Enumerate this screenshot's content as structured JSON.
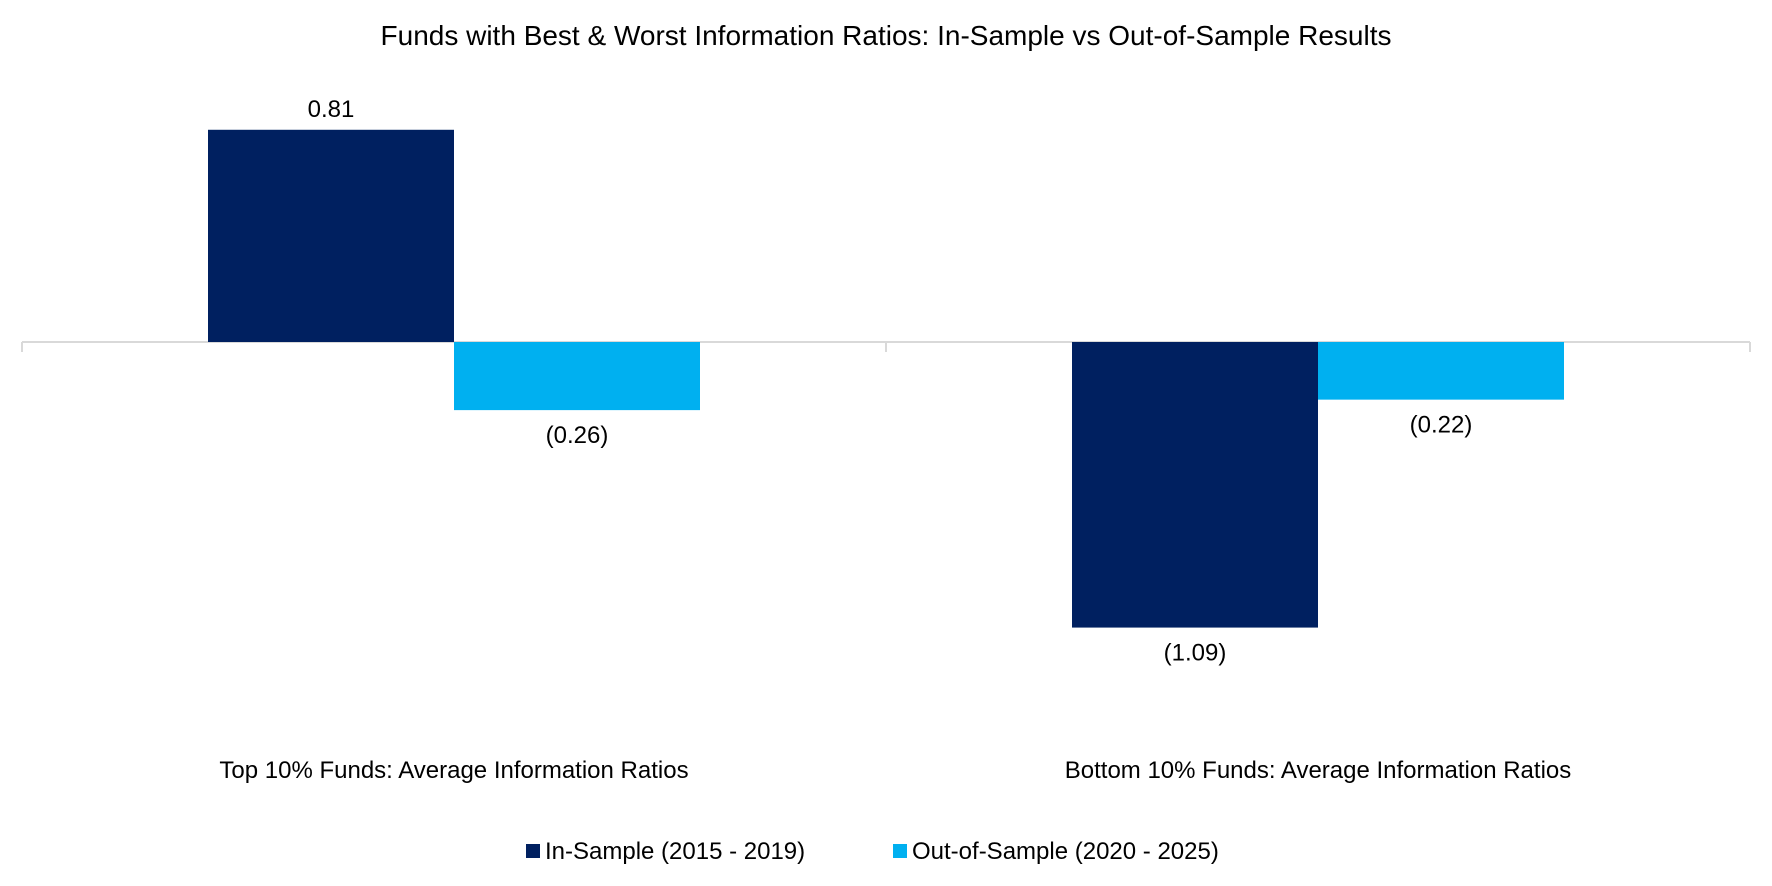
{
  "chart_data": {
    "type": "bar",
    "title": "Funds with Best & Worst Information Ratios: In-Sample vs Out-of-Sample Results",
    "categories": [
      "Top 10% Funds: Average Information Ratios",
      "Bottom 10% Funds: Average Information Ratios"
    ],
    "series": [
      {
        "name": "In-Sample (2015 - 2019)",
        "color": "#002060",
        "values": [
          0.81,
          -1.09
        ],
        "labels": [
          "0.81",
          "(1.09)"
        ]
      },
      {
        "name": "Out-of-Sample (2020 - 2025)",
        "color": "#00B0F0",
        "values": [
          -0.26,
          -0.22
        ],
        "labels": [
          "(0.26)",
          "(0.22)"
        ]
      }
    ],
    "ylim": [
      -1.4,
      1.0
    ],
    "xlabel": "",
    "ylabel": "",
    "grid": false,
    "legend_position": "bottom"
  }
}
